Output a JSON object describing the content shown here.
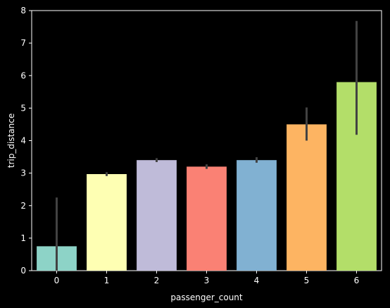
{
  "chart_data": {
    "type": "bar",
    "xlabel": "passenger_count",
    "ylabel": "trip_distance",
    "categories": [
      "0",
      "1",
      "2",
      "3",
      "4",
      "5",
      "6"
    ],
    "values": [
      0.75,
      2.97,
      3.4,
      3.2,
      3.4,
      4.5,
      5.8
    ],
    "error_bars": [
      [
        0.0,
        2.25
      ],
      [
        2.91,
        3.03
      ],
      [
        3.34,
        3.46
      ],
      [
        3.13,
        3.27
      ],
      [
        3.32,
        3.49
      ],
      [
        4.0,
        5.02
      ],
      [
        4.18,
        7.68
      ]
    ],
    "bar_colors": [
      "#8dd3c7",
      "#feffb3",
      "#bfbbd9",
      "#fa8174",
      "#81b1d2",
      "#fdb462",
      "#b3de69"
    ],
    "error_bar_color": "#424242",
    "ylim": [
      0,
      8
    ],
    "yticks": [
      0,
      1,
      2,
      3,
      4,
      5,
      6,
      7,
      8
    ],
    "grid": false,
    "legend": "none"
  }
}
